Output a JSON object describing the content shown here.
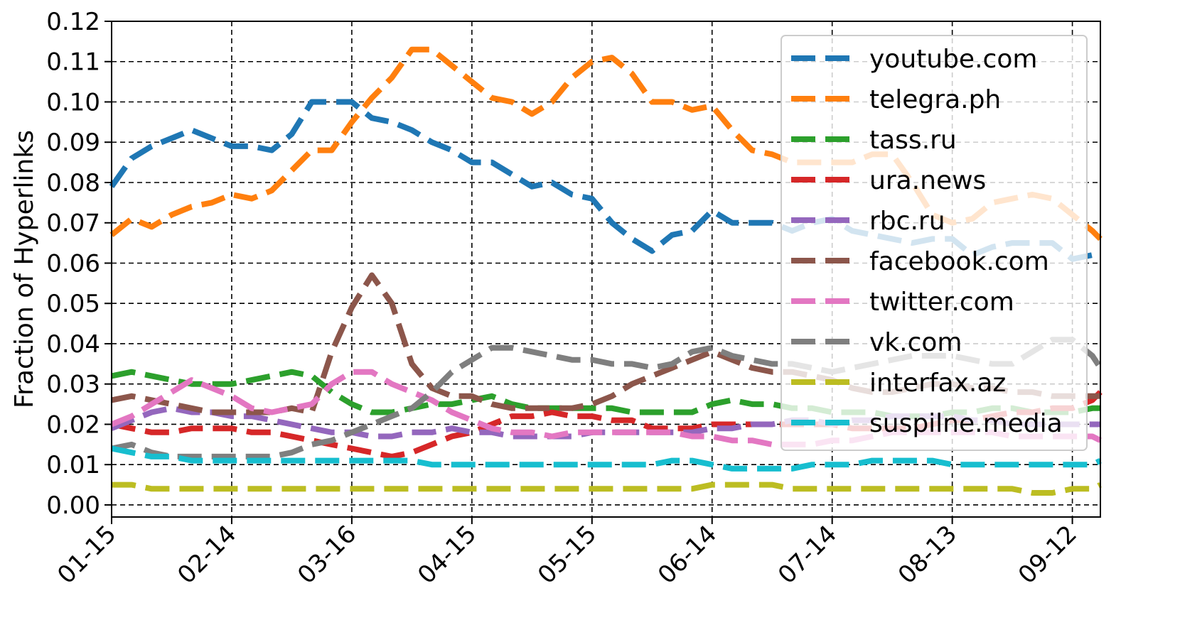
{
  "chart_data": {
    "type": "line",
    "title": "",
    "xlabel": "",
    "ylabel": "Fraction of Hyperlinks",
    "x_ticks": [
      "01-15",
      "02-14",
      "03-16",
      "04-15",
      "05-15",
      "06-14",
      "07-14",
      "08-13",
      "09-12"
    ],
    "xlim": [
      0,
      247
    ],
    "ylim": [
      -0.003,
      0.12
    ],
    "y_ticks": [
      "0.00",
      "0.01",
      "0.02",
      "0.03",
      "0.04",
      "0.05",
      "0.06",
      "0.07",
      "0.08",
      "0.09",
      "0.10",
      "0.11",
      "0.12"
    ],
    "grid": true,
    "legend_position": "upper right",
    "x": [
      0,
      5,
      10,
      15,
      20,
      25,
      30,
      35,
      40,
      45,
      50,
      55,
      60,
      65,
      70,
      75,
      80,
      85,
      90,
      95,
      100,
      105,
      110,
      115,
      120,
      125,
      130,
      135,
      140,
      145,
      150,
      155,
      160,
      165,
      170,
      175,
      180,
      185,
      190,
      195,
      200,
      205,
      210,
      215,
      220,
      225,
      230,
      235,
      240,
      245,
      247
    ],
    "series": [
      {
        "name": "youtube.com",
        "color": "#1f77b4",
        "values": [
          0.079,
          0.086,
          0.089,
          0.091,
          0.093,
          0.091,
          0.089,
          0.089,
          0.088,
          0.092,
          0.1,
          0.1,
          0.1,
          0.096,
          0.095,
          0.093,
          0.09,
          0.088,
          0.085,
          0.085,
          0.082,
          0.079,
          0.08,
          0.077,
          0.076,
          0.07,
          0.066,
          0.063,
          0.067,
          0.068,
          0.073,
          0.07,
          0.07,
          0.07,
          0.068,
          0.07,
          0.071,
          0.068,
          0.067,
          0.066,
          0.065,
          0.066,
          0.066,
          0.062,
          0.064,
          0.065,
          0.065,
          0.065,
          0.061,
          0.062,
          0.063
        ]
      },
      {
        "name": "telegra.ph",
        "color": "#ff7f0e",
        "values": [
          0.067,
          0.071,
          0.069,
          0.072,
          0.074,
          0.075,
          0.077,
          0.076,
          0.078,
          0.083,
          0.088,
          0.088,
          0.095,
          0.101,
          0.106,
          0.113,
          0.113,
          0.109,
          0.105,
          0.101,
          0.1,
          0.097,
          0.1,
          0.106,
          0.11,
          0.111,
          0.107,
          0.1,
          0.1,
          0.098,
          0.099,
          0.093,
          0.088,
          0.087,
          0.085,
          0.085,
          0.085,
          0.085,
          0.087,
          0.087,
          0.08,
          0.072,
          0.07,
          0.071,
          0.075,
          0.076,
          0.077,
          0.076,
          0.072,
          0.068,
          0.066
        ]
      },
      {
        "name": "tass.ru",
        "color": "#2ca02c",
        "values": [
          0.032,
          0.033,
          0.032,
          0.031,
          0.03,
          0.03,
          0.03,
          0.031,
          0.032,
          0.033,
          0.032,
          0.028,
          0.025,
          0.023,
          0.023,
          0.024,
          0.025,
          0.025,
          0.026,
          0.027,
          0.025,
          0.024,
          0.024,
          0.024,
          0.024,
          0.024,
          0.023,
          0.023,
          0.023,
          0.023,
          0.025,
          0.026,
          0.025,
          0.025,
          0.024,
          0.024,
          0.023,
          0.023,
          0.023,
          0.022,
          0.022,
          0.022,
          0.023,
          0.023,
          0.024,
          0.024,
          0.023,
          0.023,
          0.023,
          0.024,
          0.024
        ]
      },
      {
        "name": "ura.news",
        "color": "#d62728",
        "values": [
          0.02,
          0.019,
          0.018,
          0.018,
          0.019,
          0.019,
          0.019,
          0.018,
          0.018,
          0.017,
          0.016,
          0.015,
          0.014,
          0.013,
          0.012,
          0.013,
          0.015,
          0.017,
          0.018,
          0.02,
          0.022,
          0.022,
          0.023,
          0.022,
          0.022,
          0.021,
          0.021,
          0.019,
          0.019,
          0.019,
          0.02,
          0.02,
          0.02,
          0.02,
          0.02,
          0.02,
          0.02,
          0.019,
          0.019,
          0.019,
          0.019,
          0.02,
          0.021,
          0.021,
          0.022,
          0.023,
          0.023,
          0.024,
          0.024,
          0.026,
          0.028
        ]
      },
      {
        "name": "rbc.ru",
        "color": "#9467bd",
        "values": [
          0.019,
          0.021,
          0.023,
          0.024,
          0.023,
          0.023,
          0.022,
          0.022,
          0.021,
          0.02,
          0.019,
          0.018,
          0.018,
          0.017,
          0.017,
          0.018,
          0.018,
          0.019,
          0.018,
          0.018,
          0.017,
          0.017,
          0.017,
          0.017,
          0.018,
          0.018,
          0.018,
          0.018,
          0.018,
          0.018,
          0.019,
          0.019,
          0.02,
          0.02,
          0.021,
          0.021,
          0.02,
          0.021,
          0.021,
          0.022,
          0.022,
          0.022,
          0.022,
          0.021,
          0.021,
          0.02,
          0.02,
          0.02,
          0.02,
          0.02,
          0.02
        ]
      },
      {
        "name": "facebook.com",
        "color": "#8c564b",
        "values": [
          0.026,
          0.027,
          0.026,
          0.025,
          0.024,
          0.023,
          0.023,
          0.023,
          0.023,
          0.024,
          0.023,
          0.038,
          0.049,
          0.057,
          0.05,
          0.035,
          0.029,
          0.027,
          0.027,
          0.025,
          0.024,
          0.024,
          0.024,
          0.024,
          0.025,
          0.027,
          0.03,
          0.032,
          0.034,
          0.036,
          0.038,
          0.036,
          0.034,
          0.033,
          0.033,
          0.032,
          0.031,
          0.029,
          0.028,
          0.028,
          0.029,
          0.03,
          0.03,
          0.029,
          0.029,
          0.028,
          0.028,
          0.027,
          0.027,
          0.027,
          0.027
        ]
      },
      {
        "name": "twitter.com",
        "color": "#e377c2",
        "values": [
          0.02,
          0.022,
          0.025,
          0.028,
          0.031,
          0.029,
          0.027,
          0.024,
          0.023,
          0.024,
          0.025,
          0.03,
          0.033,
          0.033,
          0.03,
          0.028,
          0.026,
          0.023,
          0.021,
          0.019,
          0.018,
          0.018,
          0.017,
          0.018,
          0.018,
          0.018,
          0.018,
          0.018,
          0.018,
          0.017,
          0.017,
          0.016,
          0.016,
          0.015,
          0.015,
          0.015,
          0.016,
          0.016,
          0.017,
          0.018,
          0.018,
          0.018,
          0.018,
          0.018,
          0.018,
          0.017,
          0.017,
          0.017,
          0.017,
          0.017,
          0.016
        ]
      },
      {
        "name": "vk.com",
        "color": "#7f7f7f",
        "values": [
          0.014,
          0.015,
          0.013,
          0.012,
          0.012,
          0.012,
          0.012,
          0.012,
          0.012,
          0.013,
          0.015,
          0.016,
          0.018,
          0.02,
          0.022,
          0.024,
          0.028,
          0.033,
          0.036,
          0.039,
          0.039,
          0.038,
          0.037,
          0.036,
          0.036,
          0.035,
          0.035,
          0.034,
          0.035,
          0.038,
          0.039,
          0.037,
          0.036,
          0.035,
          0.035,
          0.034,
          0.033,
          0.034,
          0.035,
          0.036,
          0.037,
          0.037,
          0.037,
          0.036,
          0.035,
          0.035,
          0.038,
          0.041,
          0.041,
          0.037,
          0.034
        ]
      },
      {
        "name": "interfax.az",
        "color": "#bcbd22",
        "values": [
          0.005,
          0.005,
          0.004,
          0.004,
          0.004,
          0.004,
          0.004,
          0.004,
          0.004,
          0.004,
          0.004,
          0.004,
          0.004,
          0.004,
          0.004,
          0.004,
          0.004,
          0.004,
          0.004,
          0.004,
          0.004,
          0.004,
          0.004,
          0.004,
          0.004,
          0.004,
          0.004,
          0.004,
          0.004,
          0.004,
          0.005,
          0.005,
          0.005,
          0.005,
          0.004,
          0.004,
          0.004,
          0.004,
          0.004,
          0.004,
          0.004,
          0.004,
          0.004,
          0.004,
          0.004,
          0.004,
          0.003,
          0.003,
          0.004,
          0.004,
          0.005
        ]
      },
      {
        "name": "suspilne.media",
        "color": "#17becf",
        "values": [
          0.014,
          0.013,
          0.012,
          0.012,
          0.011,
          0.011,
          0.011,
          0.011,
          0.011,
          0.011,
          0.011,
          0.011,
          0.011,
          0.011,
          0.011,
          0.011,
          0.01,
          0.01,
          0.01,
          0.01,
          0.01,
          0.01,
          0.01,
          0.01,
          0.01,
          0.01,
          0.01,
          0.01,
          0.011,
          0.011,
          0.01,
          0.009,
          0.009,
          0.009,
          0.009,
          0.01,
          0.01,
          0.01,
          0.011,
          0.011,
          0.011,
          0.011,
          0.01,
          0.01,
          0.01,
          0.01,
          0.01,
          0.01,
          0.01,
          0.01,
          0.011
        ]
      }
    ]
  }
}
